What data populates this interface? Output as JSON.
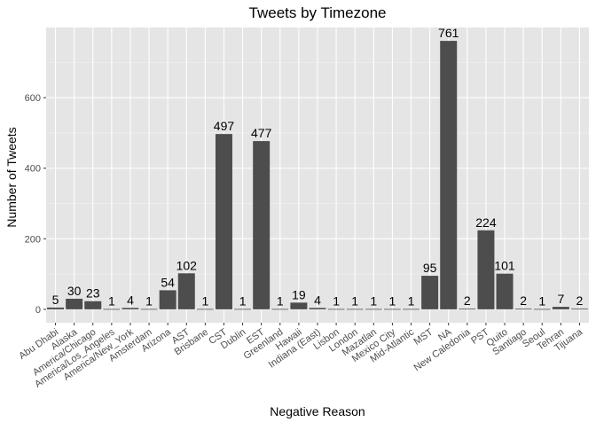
{
  "chart_data": {
    "type": "bar",
    "title": "Tweets by Timezone",
    "xlabel": "Negative Reason",
    "ylabel": "Number of Tweets",
    "categories": [
      "Abu Dhabi",
      "Alaska",
      "America/Chicago",
      "America/Los_Angeles",
      "America/New_York",
      "Amsterdam",
      "Arizona",
      "AST",
      "Brisbane",
      "CST",
      "Dublin",
      "EST",
      "Greenland",
      "Hawaii",
      "Indiana (East)",
      "Lisbon",
      "London",
      "Mazatlan",
      "Mexico City",
      "Mid-Atlantic",
      "MST",
      "NA",
      "New Caledonia",
      "PST",
      "Quito",
      "Santiago",
      "Seoul",
      "Tehran",
      "Tijuana"
    ],
    "values": [
      5,
      30,
      23,
      1,
      4,
      1,
      54,
      102,
      1,
      497,
      1,
      477,
      1,
      19,
      4,
      1,
      1,
      1,
      1,
      1,
      95,
      761,
      2,
      224,
      101,
      2,
      1,
      7,
      2
    ],
    "ylim": [
      -38,
      799
    ],
    "yticks": [
      "0",
      "200",
      "400",
      "600"
    ],
    "grid": true,
    "colors": {
      "bar": "#4d4d4d",
      "panel": "#e5e5e5",
      "grid": "#ffffff"
    }
  }
}
